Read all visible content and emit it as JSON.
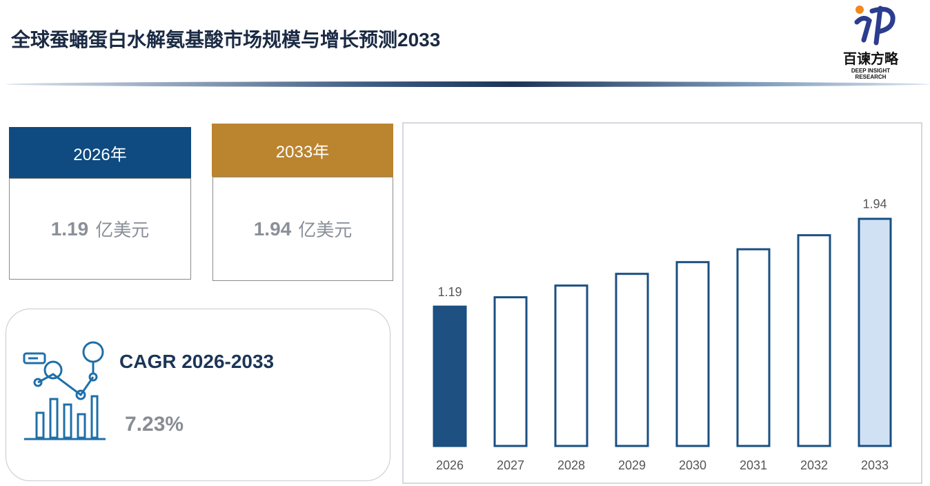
{
  "header": {
    "title": "全球蚕蛹蛋白水解氨基酸市场规模与增长预测2033",
    "logo_name": "百谏方略",
    "logo_tagline": "DEEP INSIGHT RESEARCH"
  },
  "cards": [
    {
      "year": "2026年",
      "value": "1.19",
      "unit": "亿美元",
      "color": "#0f4a80"
    },
    {
      "year": "2033年",
      "value": "1.94",
      "unit": "亿美元",
      "color": "#bb842e"
    }
  ],
  "cagr": {
    "label": "CAGR 2026-2033",
    "value": "7.23%"
  },
  "chart_data": {
    "type": "bar",
    "categories": [
      "2026",
      "2027",
      "2028",
      "2029",
      "2030",
      "2031",
      "2032",
      "2033"
    ],
    "values": [
      1.19,
      1.27,
      1.37,
      1.47,
      1.57,
      1.68,
      1.8,
      1.94
    ],
    "value_labels": [
      "1.19",
      null,
      null,
      null,
      null,
      null,
      null,
      "1.94"
    ],
    "colors": [
      "#1f5082",
      "#ffffff",
      "#ffffff",
      "#ffffff",
      "#ffffff",
      "#ffffff",
      "#ffffff",
      "#d0e1f4"
    ],
    "stroke": "#1a4f82",
    "ylim": [
      0,
      2.5
    ]
  }
}
